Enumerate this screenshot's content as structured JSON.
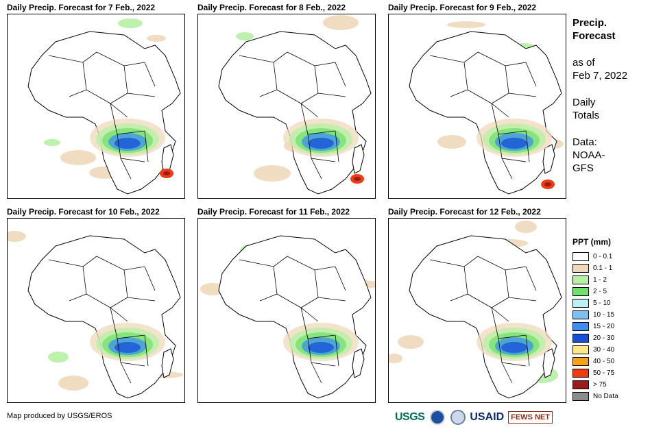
{
  "panels": [
    {
      "title": "Daily Precip. Forecast for 7 Feb., 2022"
    },
    {
      "title": "Daily Precip. Forecast for 8 Feb., 2022"
    },
    {
      "title": "Daily Precip. Forecast for 9 Feb., 2022"
    },
    {
      "title": "Daily Precip. Forecast for 10 Feb., 2022"
    },
    {
      "title": "Daily Precip. Forecast for 11 Feb., 2022"
    },
    {
      "title": "Daily Precip. Forecast for 12 Feb., 2022"
    }
  ],
  "sidebar": {
    "title_line1": "Precip.",
    "title_line2": "Forecast",
    "asof_line1": "as of",
    "asof_line2": "Feb 7, 2022",
    "totals_line1": "Daily",
    "totals_line2": "Totals",
    "data_line1": "Data:",
    "data_line2": "NOAA-",
    "data_line3": "GFS"
  },
  "legend": {
    "title": "PPT (mm)",
    "items": [
      {
        "label": "0 - 0.1",
        "color": "#ffffff"
      },
      {
        "label": "0.1 - 1",
        "color": "#efd9bb"
      },
      {
        "label": "1 - 2",
        "color": "#b6f0a4"
      },
      {
        "label": "2 - 5",
        "color": "#6fe06a"
      },
      {
        "label": "5 - 10",
        "color": "#bdf0f5"
      },
      {
        "label": "10 - 15",
        "color": "#7cc1f2"
      },
      {
        "label": "15 - 20",
        "color": "#3c8ff0"
      },
      {
        "label": "20 - 30",
        "color": "#1650d8"
      },
      {
        "label": "30 - 40",
        "color": "#fde98a"
      },
      {
        "label": "40 - 50",
        "color": "#f5a21a"
      },
      {
        "label": "50 - 75",
        "color": "#ef3b10"
      },
      {
        "label": "> 75",
        "color": "#9b1c1c"
      },
      {
        "label": "No Data",
        "color": "#8c8c8c"
      }
    ]
  },
  "credit": "Map produced by USGS/EROS",
  "logos": {
    "usgs": "USGS",
    "usaid": "USAID",
    "fews": "FEWS NET"
  }
}
